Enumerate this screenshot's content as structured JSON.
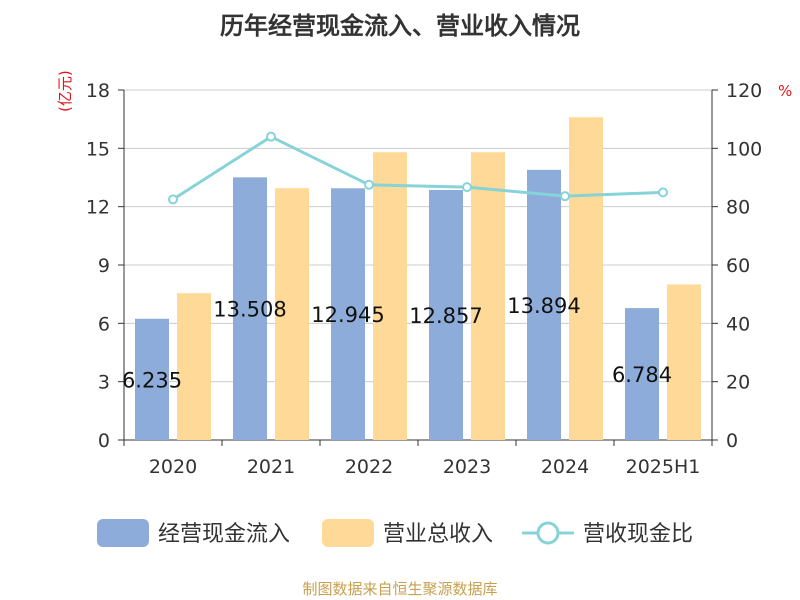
{
  "chart_data": {
    "type": "bar+line",
    "title": "历年经营现金流入、营业收入情况",
    "left_axis": {
      "unit": "(亿元)",
      "ticks": [
        "0",
        "3",
        "6",
        "9",
        "12",
        "15",
        "18"
      ],
      "ylim": [
        0,
        18
      ]
    },
    "right_axis": {
      "unit": "%",
      "ticks": [
        "0",
        "20",
        "40",
        "60",
        "80",
        "100",
        "120"
      ],
      "ylim": [
        0,
        120
      ]
    },
    "categories": [
      "2020",
      "2021",
      "2022",
      "2023",
      "2024",
      "2025H1"
    ],
    "series": [
      {
        "name": "经营现金流入",
        "type": "bar",
        "axis": "left",
        "color": "#8eacd9",
        "values": [
          6.235,
          13.508,
          12.945,
          12.857,
          13.894,
          6.784
        ],
        "labels": [
          "6.235",
          "13.508",
          "12.945",
          "12.857",
          "13.894",
          "6.784"
        ]
      },
      {
        "name": "营业总收入",
        "type": "bar",
        "axis": "left",
        "color": "#ffd998",
        "values": [
          7.55,
          12.95,
          14.8,
          14.8,
          16.6,
          8.0
        ]
      },
      {
        "name": "营收现金比",
        "type": "line",
        "axis": "right",
        "color": "#86d3d8",
        "values": [
          82.5,
          104,
          87.5,
          86.7,
          83.6,
          84.9
        ]
      }
    ],
    "grid": true,
    "legend_position": "bottom"
  },
  "source": "制图数据来自恒生聚源数据库"
}
